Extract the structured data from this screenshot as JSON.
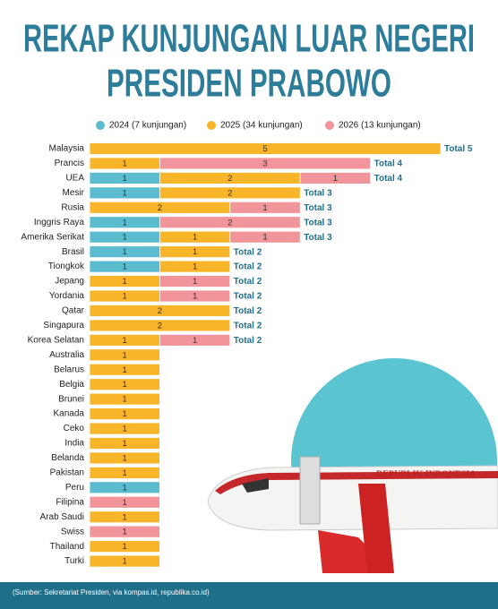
{
  "chart_data": {
    "type": "stacked-bar-horizontal",
    "title": [
      "REKAP KUNJUNGAN LUAR NEGERI",
      "PRESIDEN PRABOWO"
    ],
    "categories": [
      "Malaysia",
      "Prancis",
      "UEA",
      "Mesir",
      "Rusia",
      "Inggris Raya",
      "Amerika Serikat",
      "Brasil",
      "Tiongkok",
      "Jepang",
      "Yordania",
      "Qatar",
      "Singapura",
      "Korea Selatan",
      "Australia",
      "Belarus",
      "Belgia",
      "Brunei",
      "Kanada",
      "Ceko",
      "India",
      "Belanda",
      "Pakistan",
      "Peru",
      "Filipina",
      "Arab Saudi",
      "Swiss",
      "Thailand",
      "Turki"
    ],
    "series": [
      {
        "name": "2024 (7 kunjungan)",
        "color": "#5bbcd0",
        "values": [
          null,
          null,
          1,
          1,
          null,
          1,
          1,
          1,
          1,
          null,
          null,
          null,
          null,
          null,
          null,
          null,
          null,
          null,
          null,
          null,
          null,
          null,
          null,
          1,
          null,
          null,
          null,
          null,
          null
        ]
      },
      {
        "name": "2025 (34 kunjungan)",
        "color": "#f9b52a",
        "values": [
          5,
          1,
          2,
          2,
          2,
          null,
          1,
          1,
          1,
          1,
          1,
          2,
          2,
          1,
          1,
          1,
          1,
          1,
          1,
          1,
          1,
          1,
          1,
          null,
          null,
          1,
          null,
          1,
          1
        ]
      },
      {
        "name": "2026 (13 kunjungan)",
        "color": "#f2959a",
        "values": [
          null,
          3,
          1,
          null,
          1,
          2,
          1,
          null,
          null,
          1,
          1,
          null,
          null,
          1,
          null,
          null,
          null,
          null,
          null,
          null,
          null,
          null,
          null,
          null,
          1,
          null,
          1,
          null,
          null
        ]
      }
    ],
    "total_labels": [
      "Total 5",
      "Total 4",
      "Total 4",
      "Total 3",
      "Total 3",
      "Total 3",
      "Total 3",
      "Total 2",
      "Total 2",
      "Total 2",
      "Total 2",
      "Total 2",
      "Total 2",
      "Total 2",
      null,
      null,
      null,
      null,
      null,
      null,
      null,
      null,
      null,
      null,
      null,
      null,
      null,
      null,
      null
    ],
    "xlim": [
      0,
      5
    ],
    "plane_label": "REPUBLIK INDONESIA",
    "source": "(Sumber: Sekretariat Presiden, via kompas.id, republika.co.id)"
  }
}
